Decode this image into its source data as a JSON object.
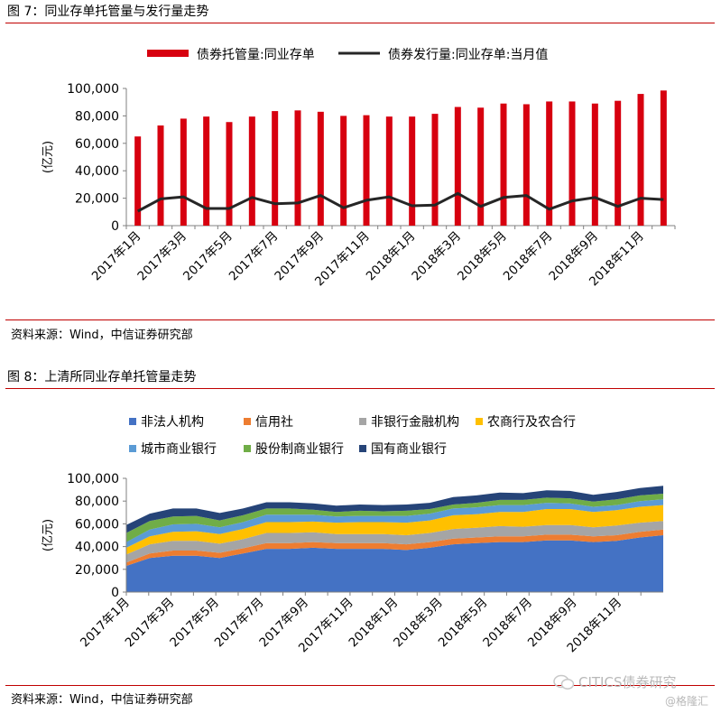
{
  "fig1": {
    "title": "图 7：同业存单托管量与发行量走势",
    "source": "资料来源：Wind，中信证券研究部",
    "ylabel": "(亿元)"
  },
  "fig2": {
    "title": "图 8：上清所同业存单托管量走势",
    "source": "资料来源：Wind，中信证券研究部",
    "ylabel": "(亿元)"
  },
  "watermark": {
    "brand": "CITICS债券研究",
    "handle": "@格隆汇"
  },
  "colors": {
    "rule": "#c00000",
    "bar": "#d7000f",
    "line": "#262626",
    "non_legal": "#4472c4",
    "credit_coop": "#ed7d31",
    "nonbank_fin": "#a5a5a5",
    "rural_comm": "#ffc000",
    "city_comm": "#5b9bd5",
    "joint_stock": "#70ad47",
    "state_owned": "#264478"
  },
  "chart_data": [
    {
      "type": "bar+line",
      "x": [
        "2017年1月",
        "2017年2月",
        "2017年3月",
        "2017年4月",
        "2017年5月",
        "2017年6月",
        "2017年7月",
        "2017年8月",
        "2017年9月",
        "2017年10月",
        "2017年11月",
        "2017年12月",
        "2018年1月",
        "2018年2月",
        "2018年3月",
        "2018年4月",
        "2018年5月",
        "2018年6月",
        "2018年7月",
        "2018年8月",
        "2018年9月",
        "2018年10月",
        "2018年11月",
        "2018年12月"
      ],
      "xtick_labels": [
        "2017年1月",
        "2017年3月",
        "2017年5月",
        "2017年7月",
        "2017年9月",
        "2017年11月",
        "2018年1月",
        "2018年3月",
        "2018年5月",
        "2018年7月",
        "2018年9月",
        "2018年11月"
      ],
      "series": [
        {
          "name": "债券托管量:同业存单",
          "kind": "bar",
          "values": [
            65000,
            73000,
            78000,
            79500,
            75500,
            79500,
            83500,
            84000,
            83000,
            80000,
            80500,
            79500,
            79500,
            81500,
            86500,
            86000,
            89000,
            88500,
            90500,
            90500,
            89000,
            91000,
            96000,
            98500
          ]
        },
        {
          "name": "债券发行量:同业存单:当月值",
          "kind": "line",
          "values": [
            10500,
            19500,
            21000,
            12500,
            12500,
            20500,
            16000,
            16500,
            22000,
            13000,
            18500,
            21000,
            14500,
            15000,
            23500,
            14000,
            20500,
            22000,
            12000,
            18000,
            20500,
            14000,
            20000,
            19000
          ]
        }
      ],
      "ylabel": "(亿元)",
      "ylim": [
        0,
        100000
      ],
      "yticks": [
        0,
        20000,
        40000,
        60000,
        80000,
        100000
      ],
      "ytick_labels": [
        "0",
        "20,000",
        "40,000",
        "60,000",
        "80,000",
        "100,000"
      ],
      "legend": "top",
      "grid": false
    },
    {
      "type": "area",
      "stacked": true,
      "x": [
        "2017年1月",
        "2017年2月",
        "2017年3月",
        "2017年4月",
        "2017年5月",
        "2017年6月",
        "2017年7月",
        "2017年8月",
        "2017年9月",
        "2017年10月",
        "2017年11月",
        "2017年12月",
        "2018年1月",
        "2018年2月",
        "2018年3月",
        "2018年4月",
        "2018年5月",
        "2018年6月",
        "2018年7月",
        "2018年8月",
        "2018年9月",
        "2018年10月",
        "2018年11月",
        "2018年12月"
      ],
      "xtick_labels": [
        "2017年1月",
        "2017年3月",
        "2017年5月",
        "2017年7月",
        "2017年9月",
        "2017年11月",
        "2018年1月",
        "2018年3月",
        "2018年5月",
        "2018年7月",
        "2018年9月",
        "2018年11月"
      ],
      "series": [
        {
          "name": "非法人机构",
          "values": [
            23000,
            30000,
            32000,
            32000,
            30000,
            34000,
            38000,
            38000,
            39000,
            38000,
            38000,
            38000,
            37000,
            39000,
            42000,
            43000,
            44000,
            44000,
            45500,
            45500,
            44000,
            45000,
            48000,
            50000
          ]
        },
        {
          "name": "信用社",
          "values": [
            3000,
            4000,
            4500,
            4500,
            4500,
            4500,
            5000,
            5000,
            5000,
            5000,
            5000,
            5000,
            5000,
            5000,
            5000,
            5000,
            5000,
            5000,
            5000,
            5000,
            5000,
            5000,
            5000,
            5000
          ]
        },
        {
          "name": "非银行金融机构",
          "values": [
            7000,
            8000,
            8500,
            8500,
            8000,
            8000,
            9000,
            9000,
            8500,
            8000,
            8000,
            8000,
            8000,
            8000,
            8500,
            8500,
            9000,
            8500,
            8500,
            8500,
            8000,
            8500,
            8000,
            7500
          ]
        },
        {
          "name": "农商行及农合行",
          "values": [
            6000,
            7000,
            8000,
            8500,
            8500,
            9000,
            9500,
            9500,
            9500,
            10000,
            10500,
            10500,
            11000,
            11000,
            12000,
            12000,
            12500,
            13000,
            14000,
            14000,
            13500,
            13500,
            14000,
            14000
          ]
        },
        {
          "name": "城市商业银行",
          "values": [
            5000,
            6000,
            6500,
            6500,
            6000,
            6000,
            6500,
            6500,
            6000,
            5500,
            5500,
            5500,
            6000,
            6000,
            6000,
            6000,
            6000,
            6000,
            5500,
            5000,
            4500,
            4500,
            5000,
            5000
          ]
        },
        {
          "name": "股份制商业银行",
          "values": [
            8000,
            7500,
            7000,
            7000,
            6000,
            6000,
            5500,
            5500,
            4500,
            4000,
            4500,
            4000,
            4500,
            4000,
            3500,
            4000,
            4500,
            4500,
            4500,
            4500,
            4500,
            5000,
            5000,
            5000
          ]
        },
        {
          "name": "国有商业银行",
          "values": [
            7000,
            6500,
            7000,
            6500,
            6500,
            6000,
            5500,
            5500,
            5500,
            5500,
            5500,
            5500,
            5500,
            5500,
            6500,
            6500,
            6500,
            6000,
            6500,
            6500,
            6000,
            6500,
            6500,
            7000
          ]
        }
      ],
      "ylabel": "(亿元)",
      "ylim": [
        0,
        100000
      ],
      "yticks": [
        0,
        20000,
        40000,
        60000,
        80000,
        100000
      ],
      "ytick_labels": [
        "0",
        "20,000",
        "40,000",
        "60,000",
        "80,000",
        "100,000"
      ],
      "legend": "top",
      "grid": false
    }
  ]
}
